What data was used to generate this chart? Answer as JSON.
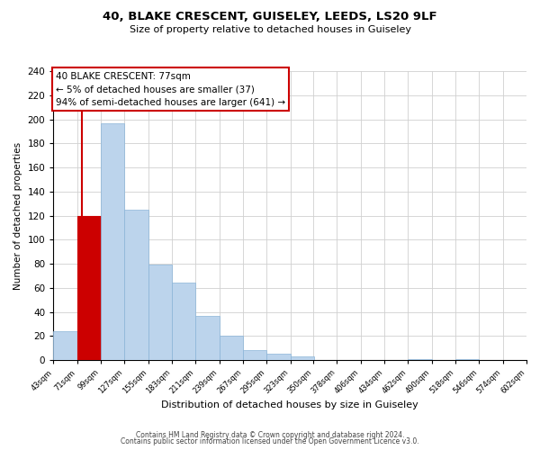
{
  "title": "40, BLAKE CRESCENT, GUISELEY, LEEDS, LS20 9LF",
  "subtitle": "Size of property relative to detached houses in Guiseley",
  "xlabel": "Distribution of detached houses by size in Guiseley",
  "ylabel": "Number of detached properties",
  "bar_edges": [
    43,
    71,
    99,
    127,
    155,
    183,
    211,
    239,
    267,
    295,
    323,
    350,
    378,
    406,
    434,
    462,
    490,
    518,
    546,
    574,
    602
  ],
  "bar_heights": [
    24,
    120,
    197,
    125,
    79,
    64,
    37,
    20,
    8,
    5,
    3,
    0,
    0,
    0,
    0,
    1,
    0,
    1,
    0,
    0
  ],
  "bar_color": "#bcd4ec",
  "red_bar_index": 1,
  "red_bar_color": "#cc0000",
  "property_line_x": 77,
  "annotation_title": "40 BLAKE CRESCENT: 77sqm",
  "annotation_line1": "← 5% of detached houses are smaller (37)",
  "annotation_line2": "94% of semi-detached houses are larger (641) →",
  "annotation_box_color": "#ffffff",
  "annotation_border_color": "#cc0000",
  "ylim": [
    0,
    240
  ],
  "yticks": [
    0,
    20,
    40,
    60,
    80,
    100,
    120,
    140,
    160,
    180,
    200,
    220,
    240
  ],
  "tick_labels": [
    "43sqm",
    "71sqm",
    "99sqm",
    "127sqm",
    "155sqm",
    "183sqm",
    "211sqm",
    "239sqm",
    "267sqm",
    "295sqm",
    "323sqm",
    "350sqm",
    "378sqm",
    "406sqm",
    "434sqm",
    "462sqm",
    "490sqm",
    "518sqm",
    "546sqm",
    "574sqm",
    "602sqm"
  ],
  "footer1": "Contains HM Land Registry data © Crown copyright and database right 2024.",
  "footer2": "Contains public sector information licensed under the Open Government Licence v3.0.",
  "bg_color": "#ffffff",
  "grid_color": "#d0d0d0"
}
